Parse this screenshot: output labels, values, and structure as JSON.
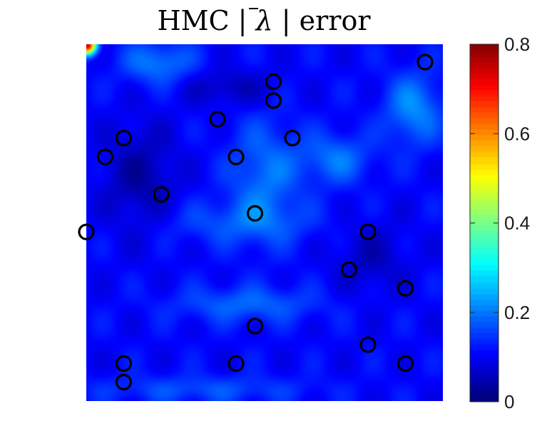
{
  "chart_data": {
    "type": "heatmap",
    "title": {
      "prefix": "HMC | ",
      "symbol": "λ",
      "suffix": " | error"
    },
    "colormap": "jet",
    "colorbar": {
      "min": 0,
      "max": 0.8,
      "ticks": [
        "0",
        "0.2",
        "0.4",
        "0.6",
        "0.8"
      ]
    },
    "grid": false,
    "axes_visible": false,
    "sensor_marker": {
      "shape": "circle",
      "color": "#000000"
    },
    "sensors": [
      {
        "x": 0.95,
        "y": 0.95
      },
      {
        "x": 0.525,
        "y": 0.895
      },
      {
        "x": 0.525,
        "y": 0.842
      },
      {
        "x": 0.368,
        "y": 0.79
      },
      {
        "x": 0.105,
        "y": 0.737
      },
      {
        "x": 0.578,
        "y": 0.737
      },
      {
        "x": 0.053,
        "y": 0.684
      },
      {
        "x": 0.42,
        "y": 0.684
      },
      {
        "x": 0.21,
        "y": 0.579
      },
      {
        "x": 0.473,
        "y": 0.526
      },
      {
        "x": 0.0,
        "y": 0.474
      },
      {
        "x": 0.79,
        "y": 0.474
      },
      {
        "x": 0.737,
        "y": 0.368
      },
      {
        "x": 0.895,
        "y": 0.316
      },
      {
        "x": 0.473,
        "y": 0.21
      },
      {
        "x": 0.79,
        "y": 0.158
      },
      {
        "x": 0.105,
        "y": 0.105
      },
      {
        "x": 0.42,
        "y": 0.105
      },
      {
        "x": 0.895,
        "y": 0.105
      },
      {
        "x": 0.105,
        "y": 0.053
      }
    ]
  }
}
